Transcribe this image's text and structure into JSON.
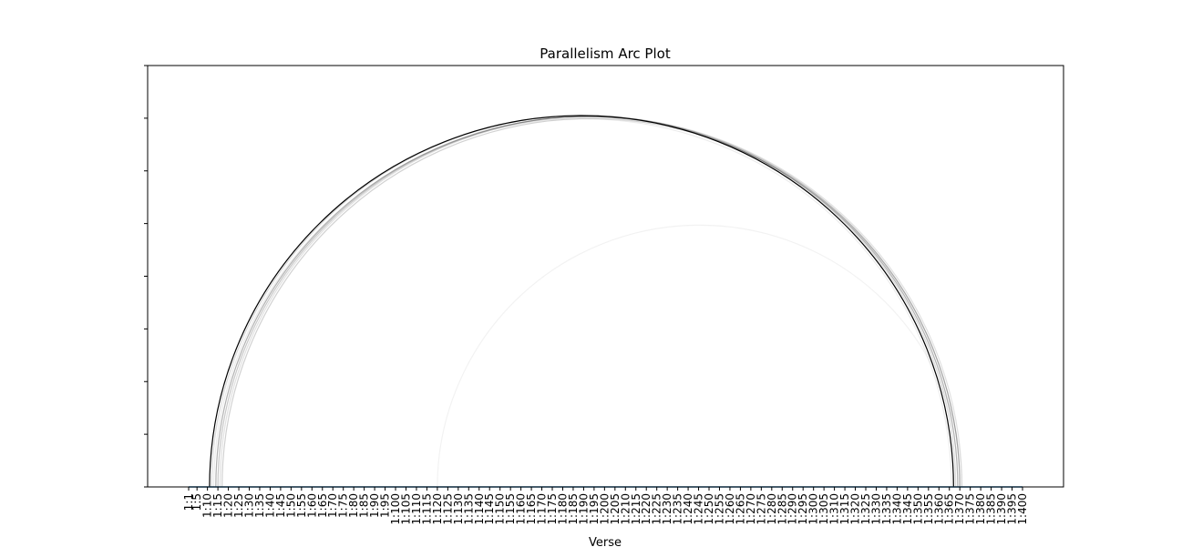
{
  "chart_data": {
    "type": "arc",
    "title": "Parallelism Arc Plot",
    "xlabel": "Verse",
    "ylabel": "",
    "x_tick_labels": [
      "1:1",
      "1:5",
      "1:10",
      "1:15",
      "1:20",
      "1:25",
      "1:30",
      "1:35",
      "1:40",
      "1:45",
      "1:50",
      "1:55",
      "1:60",
      "1:65",
      "1:70",
      "1:75",
      "1:80",
      "1:85",
      "1:90",
      "1:95",
      "1:100",
      "1:105",
      "1:110",
      "1:115",
      "1:120",
      "1:125",
      "1:130",
      "1:135",
      "1:140",
      "1:145",
      "1:150",
      "1:155",
      "1:160",
      "1:165",
      "1:170",
      "1:175",
      "1:180",
      "1:185",
      "1:190",
      "1:195",
      "1:200",
      "1:205",
      "1:210",
      "1:215",
      "1:220",
      "1:225",
      "1:230",
      "1:235",
      "1:240",
      "1:245",
      "1:250",
      "1:255",
      "1:260",
      "1:265",
      "1:270",
      "1:275",
      "1:280",
      "1:285",
      "1:290",
      "1:295",
      "1:300",
      "1:305",
      "1:310",
      "1:315",
      "1:320",
      "1:325",
      "1:330",
      "1:335",
      "1:340",
      "1:345",
      "1:350",
      "1:355",
      "1:360",
      "1:365",
      "1:370",
      "1:375",
      "1:380",
      "1:385",
      "1:390",
      "1:395",
      "1:400"
    ],
    "y_ticks_count": 9,
    "grid": false,
    "baseline_color": "#1f77b4",
    "arcs": [
      {
        "start": 11,
        "end": 367,
        "opacity": 1.0
      },
      {
        "start": 14,
        "end": 369,
        "opacity": 0.3
      },
      {
        "start": 15,
        "end": 370,
        "opacity": 0.22
      },
      {
        "start": 17,
        "end": 370,
        "opacity": 0.18
      },
      {
        "start": 12,
        "end": 368,
        "opacity": 0.15
      },
      {
        "start": 16,
        "end": 371,
        "opacity": 0.12
      },
      {
        "start": 13,
        "end": 366,
        "opacity": 0.08
      },
      {
        "start": 120,
        "end": 371,
        "opacity": 0.05
      }
    ]
  }
}
